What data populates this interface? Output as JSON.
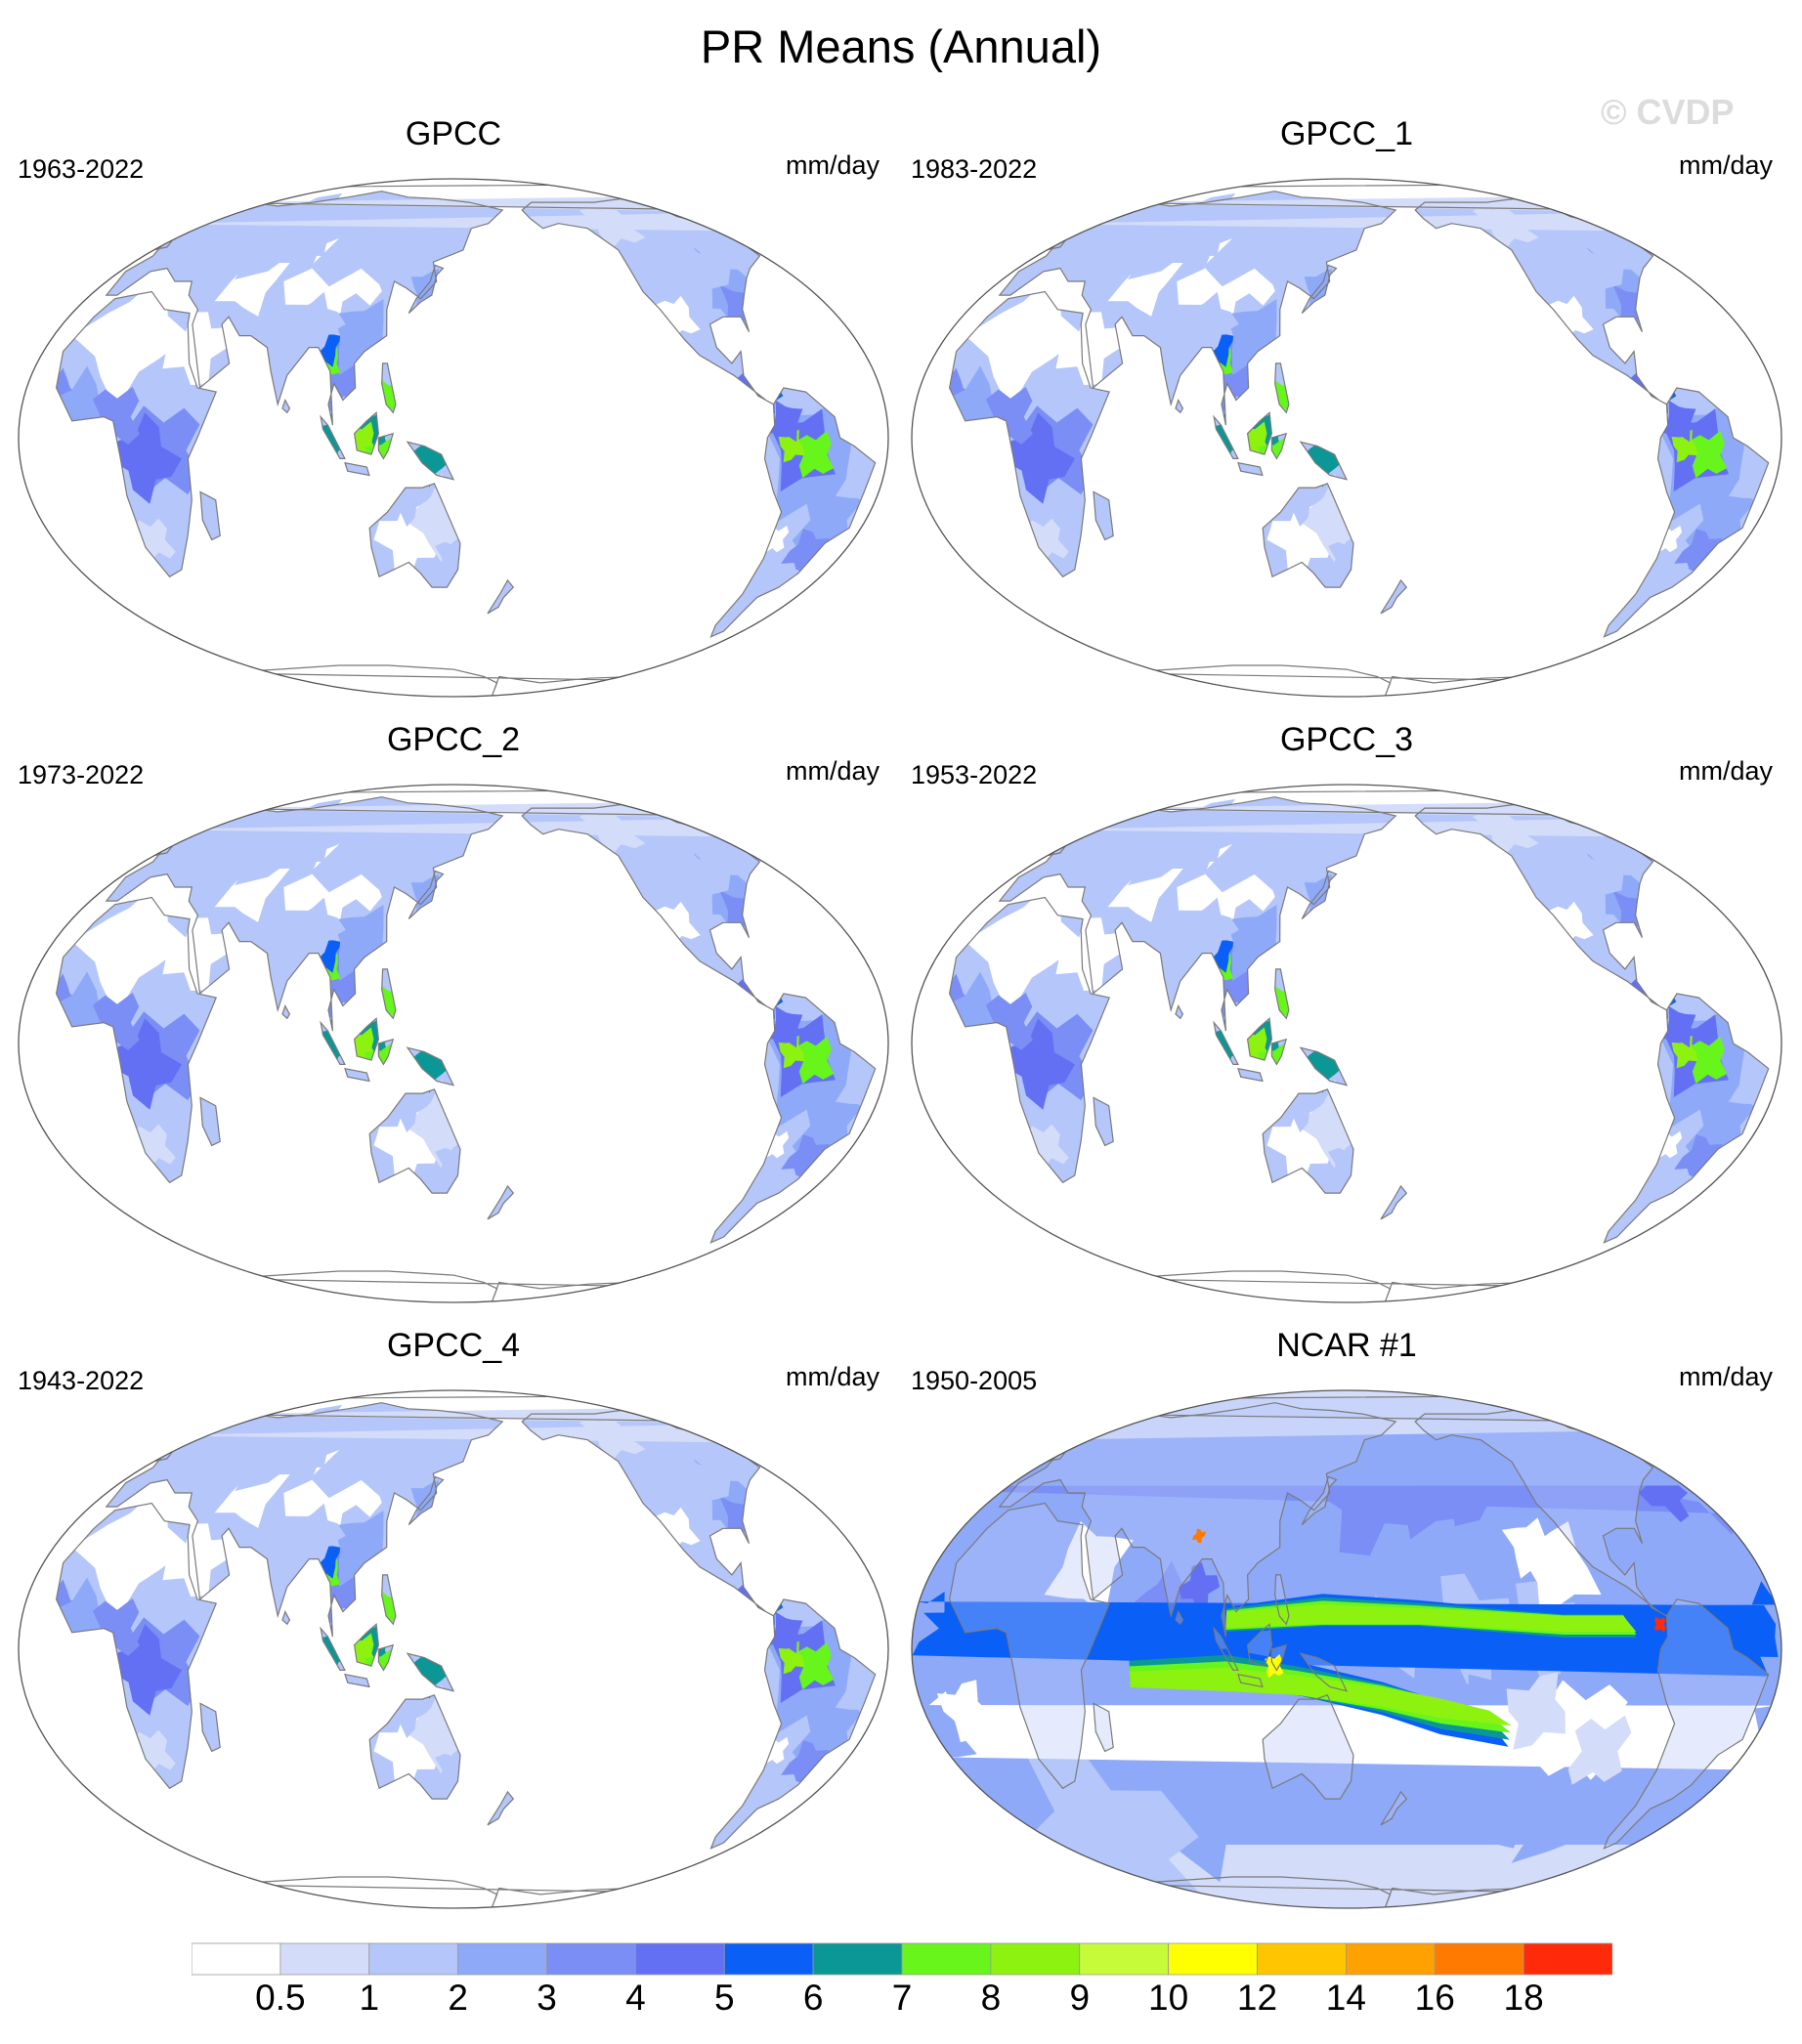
{
  "title": "PR Means (Annual)",
  "watermark": "© CVDP",
  "panels": [
    {
      "title": "GPCC",
      "years": "1963-2022",
      "units": "mm/day",
      "kind": "land"
    },
    {
      "title": "GPCC_1",
      "years": "1983-2022",
      "units": "mm/day",
      "kind": "land"
    },
    {
      "title": "GPCC_2",
      "years": "1973-2022",
      "units": "mm/day",
      "kind": "land"
    },
    {
      "title": "GPCC_3",
      "years": "1953-2022",
      "units": "mm/day",
      "kind": "land"
    },
    {
      "title": "GPCC_4",
      "years": "1943-2022",
      "units": "mm/day",
      "kind": "land"
    },
    {
      "title": "NCAR #1",
      "years": "1950-2005",
      "units": "mm/day",
      "kind": "model"
    }
  ],
  "colorbar": {
    "colors": [
      "#ffffff",
      "#d3dcf9",
      "#b4c6fa",
      "#8fa9f9",
      "#7a8ef5",
      "#6470f4",
      "#0a5ff6",
      "#0b9795",
      "#67f51c",
      "#8ef210",
      "#c6fb3a",
      "#ffff00",
      "#ffc600",
      "#ffa100",
      "#ff7a00",
      "#ff2a0a"
    ],
    "labels": [
      "0.5",
      "1",
      "2",
      "3",
      "4",
      "5",
      "6",
      "7",
      "8",
      "9",
      "10",
      "12",
      "14",
      "16",
      "18"
    ]
  }
}
